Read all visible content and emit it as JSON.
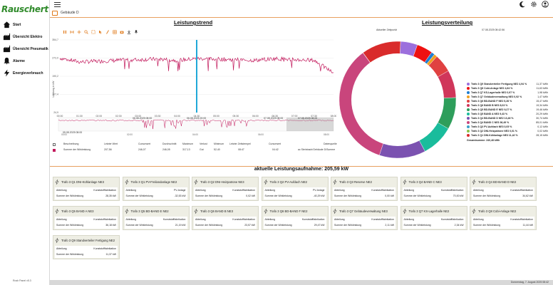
{
  "app": {
    "logo": "Rauschert",
    "version": "Rosh Panel v5.3"
  },
  "sidebar": {
    "items": [
      {
        "label": "Start",
        "icon": "home-icon"
      },
      {
        "label": "Übersicht Elektro",
        "icon": "factory-icon"
      },
      {
        "label": "Übersicht Pneumatik",
        "icon": "factory-icon"
      },
      {
        "label": "Alarme",
        "icon": "bell-icon"
      },
      {
        "label": "Energieverbrauch",
        "icon": "bolt-icon"
      }
    ]
  },
  "breadcrumb": {
    "label": "Gebäude D"
  },
  "trend": {
    "title": "Leistungstrend",
    "y_ticks": [
      "354,7",
      "272,0",
      "190,2",
      "107,4",
      "24,9"
    ],
    "y_label": "Leistung in kW",
    "x_ticks": [
      "00:00",
      "01:30",
      "02:00",
      "02:30",
      "03:00",
      "03:30",
      "04:00",
      "04:30",
      "05:00",
      "05:30",
      "06:00",
      "06:30",
      "07:00",
      "07:30",
      "08:00"
    ],
    "nav_ticks": [
      "00:00",
      "02:00",
      "04:00",
      "06:00",
      "08:00"
    ],
    "start_time": "05.08.2025 08:00",
    "mid_time1": "06.08.2025 08:00",
    "mid_time2": "06.08.2025 20:00",
    "mid_time3": "07.08.2025 08:00",
    "end_time": "07.08.2025 08:00",
    "legend_headers": [
      "Beschreibung",
      "Letzter Wert",
      "Cursorwert",
      "Durchschnitt",
      "Maximum",
      "Min",
      "Verlust",
      "Minimum",
      "Letzter Zeitstempel",
      "Cursorwert",
      "Datenquelle"
    ],
    "legend_row": {
      "name": "Summe der Wirkleistung",
      "values": [
        "207,56",
        "246,07",
        "246,05",
        "317,13",
        "Gut",
        "52,40",
        "08:47",
        "04:42",
        "ac Steinbach/Gebäude D/Summe"
      ]
    }
  },
  "chart_data": {
    "type": "line",
    "title": "Leistungstrend",
    "xlabel": "",
    "ylabel": "Leistung in kW",
    "ylim": [
      24.9,
      354.7
    ],
    "x": [
      "00:00",
      "01:30",
      "02:00",
      "02:30",
      "03:00",
      "03:30",
      "04:00",
      "04:30",
      "05:00",
      "05:30",
      "06:00",
      "06:30",
      "07:00",
      "07:30",
      "08:00"
    ],
    "series": [
      {
        "name": "Summe der Wirkleistung",
        "color": "#c2185b",
        "values": [
          272,
          255,
          258,
          262,
          265,
          268,
          262,
          270,
          268,
          265,
          262,
          270,
          265,
          262,
          205
        ]
      }
    ],
    "cursor_x": "04:30"
  },
  "distribution": {
    "title": "Leistungsverteilung",
    "top_label": "Aktueller Zeitpunkt",
    "timestamp": "07.08.2025 08:42:56",
    "slices": [
      {
        "name": "Trafo 3 Q9 Standverteiler Fertigung NE2 4,94 %",
        "value": "11,37 kWh",
        "color": "#9c6fdd",
        "pct": 4.94
      },
      {
        "name": "Trafo 3 Q8 Cobi-Anlage NE2 4,64 %",
        "value": "11,63 kWh",
        "color": "#ee1111",
        "pct": 4.64
      },
      {
        "name": "Trafo 3 Q7 KS-Lagerhalle NE2 0,97 %",
        "value": "1,98 kWh",
        "color": "#1f7ed1",
        "pct": 0.97
      },
      {
        "name": "Trafo 3 Q7 Gebäudeverwaltung NE3 0,92 %",
        "value": "1,47 kWh",
        "color": "#f0a020",
        "pct": 0.92
      },
      {
        "name": "Trafo 3 Q6 BD-BAND F NE2 5,28 %",
        "value": "15,47 kWh",
        "color": "#e04141",
        "pct": 5.28
      },
      {
        "name": "Trafo 3 Q6 BAND B NE3 8,03 %",
        "value": "19,34 kWh",
        "color": "#d0365a",
        "pct": 8.03
      },
      {
        "name": "Trafo 3 Q5 BD-BAND E NE2 9,27 %",
        "value": "19,46 kWh",
        "color": "#2e9e5b",
        "pct": 9.27
      },
      {
        "name": "Trafo 3 Q5 BAND A NE3 9,43 %",
        "value": "20,29 kWh",
        "color": "#1abc9c",
        "pct": 9.43
      },
      {
        "name": "Trafo 3 Q4 BD-BAND D NE2 13,46 %",
        "value": "30,74 kWh",
        "color": "#7b52b0",
        "pct": 13.46
      },
      {
        "name": "Trafo 3 Q4 BAND C NE3 36,49 %",
        "value": "85,01 kWh",
        "color": "#c9457c",
        "pct": 36.49
      },
      {
        "name": "Trafo 3 Q3 PV-Aufdach NE3 0,05 %",
        "value": "0,12 kWh",
        "color": "#3aa0c8",
        "pct": 0.05
      },
      {
        "name": "Trafo 3 Q2 DNI-Heizpatrone NE3 0,01 %",
        "value": "0,02 kWh",
        "color": "#8bc34a",
        "pct": 0.01
      },
      {
        "name": "Trafo 3 Q1 DNI-Kühlanlage NE3 11,42 %",
        "value": "28,15 kWh",
        "color": "#d92b2b",
        "pct": 11.42
      }
    ],
    "total": "Gesamtsumme: 240,48 kWh"
  },
  "summary": {
    "label": "aktuelle Leistungsaufnahme: 205,59 kW"
  },
  "cards": [
    {
      "title": "Trafo 3 Q1 DNI-Kühlanlage NE3",
      "r1": [
        "Abteilung",
        "Kunststofffabrikation"
      ],
      "r2": [
        "Summe der Wirkleistung",
        "28,35 kW"
      ]
    },
    {
      "title": "Trafo 3 Q1 PV-Freilandanlage NE2",
      "r1": [
        "Abteilung",
        "PV-Anlage"
      ],
      "r2": [
        "Summe der Wirkleistung",
        "-32,53 kW"
      ]
    },
    {
      "title": "Trafo 3 Q2 DNI-Heizpatrone NE3",
      "r1": [
        "Abteilung",
        "Kunststofffabrikation"
      ],
      "r2": [
        "Summe der Wirkleistung",
        "0,02 kW"
      ]
    },
    {
      "title": "Trafo 3 Q2 PV-Aufdach NE2",
      "r1": [
        "Abteilung",
        "PV-Anlage"
      ],
      "r2": [
        "Summe der Wirkleistung",
        "-40,29 kW"
      ]
    },
    {
      "title": "Trafo 3 Q3 Reserve NE2",
      "r1": [
        "Abteilung",
        "Kunststofffabrikation"
      ],
      "r2": [
        "Summe der Wirkleistung",
        "0,00 kW"
      ]
    },
    {
      "title": "Trafo 3 Q4 BAND C NE3",
      "r1": [
        "Abteilung",
        "Kunststofffabrikation"
      ],
      "r2": [
        "Summe der Wirkleistung",
        "70,00 kW"
      ]
    },
    {
      "title": "Trafo 3 Q4 BD-BAND D NE2",
      "r1": [
        "Abteilung",
        "Kunststofffabrikation"
      ],
      "r2": [
        "Summe der Wirkleistung",
        "34,62 kW"
      ]
    },
    {
      "title": "Trafo 3 Q5 BAND A NE3",
      "r1": [
        "Abteilung",
        "Kunststofffabrikation"
      ],
      "r2": [
        "Summe der Wirkleistung",
        "36,18 kW"
      ]
    },
    {
      "title": "Trafo 3 Q5 BD-BAND E NE2",
      "r1": [
        "Abteilung",
        "Kunststofffabrikation"
      ],
      "r2": [
        "Summe der Wirkleistung",
        "21,19 kW"
      ]
    },
    {
      "title": "Trafo 3 Q6 BAND B NE3",
      "r1": [
        "Abteilung",
        "Kunststofffabrikation"
      ],
      "r2": [
        "Summe der Wirkleistung",
        "23,57 kW"
      ]
    },
    {
      "title": "Trafo 3 Q6 BD-BAND F NE2",
      "r1": [
        "Abteilung",
        "Kunststofffabrikation"
      ],
      "r2": [
        "Summe der Wirkleistung",
        "29,47 kW"
      ]
    },
    {
      "title": "Trafo 3 Q7 Gebäudeverwaltung NE3",
      "r1": [
        "Abteilung",
        "Kunststofffabrikation"
      ],
      "r2": [
        "Summe der Wirkleistung",
        "2,11 kW"
      ]
    },
    {
      "title": "Trafo 3 Q7 KS-Lagerhalle NE2",
      "r1": [
        "Abteilung",
        "Kunststofffabrikation"
      ],
      "r2": [
        "Summe der Wirkleistung",
        "2,34 kW"
      ]
    },
    {
      "title": "Trafo 3 Q8 Cobi-Anlage NE2",
      "r1": [
        "Abteilung",
        "Kunststofffabrikation"
      ],
      "r2": [
        "Summe der Wirkleistung",
        "11,44 kW"
      ]
    },
    {
      "title": "Trafo 3 Q9 Standverteiler Fertigung NE2",
      "r1": [
        "Abteilung",
        "Kunststofffabrikation"
      ],
      "r2": [
        "Summe der Wirkleistung",
        "11,37 kW"
      ]
    }
  ],
  "status": {
    "datetime": "Donnerstag, 7. August 2025 08:42"
  },
  "colors": {
    "accent": "#e8a060",
    "line": "#c2185b",
    "card_bg": "#eeeee4"
  }
}
